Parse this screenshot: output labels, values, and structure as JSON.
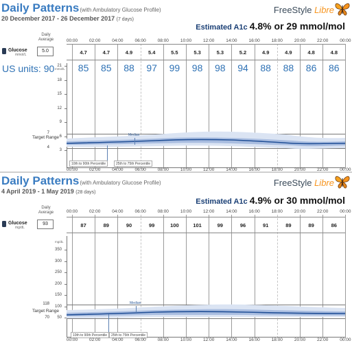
{
  "times": [
    "00:00",
    "02:00",
    "04:00",
    "06:00",
    "08:00",
    "10:00",
    "12:00",
    "14:00",
    "16:00",
    "18:00",
    "20:00",
    "22:00",
    "00:00"
  ],
  "report1": {
    "title": "Daily Patterns",
    "subtitle": "(with Ambulatory Glucose Profile)",
    "date_range": "20 December 2017 - 26 December 2017",
    "days": "(7 days)",
    "brand_freestyle": "FreeStyle",
    "brand_libre": "Libre",
    "a1c_label": "Estimated A1c",
    "a1c_value": "4.8% or 29 mmol/mol",
    "daily_average_header": "Daily Average",
    "glucose_label": "Glucose",
    "glucose_unit": "mmol/L",
    "daily_average_value": "5.0",
    "hourly_values": [
      "4.7",
      "4.7",
      "4.9",
      "5.4",
      "5.5",
      "5.3",
      "5.3",
      "5.2",
      "4.9",
      "4.9",
      "4.8",
      "4.8"
    ],
    "us_units_label": "US units: 90",
    "us_values": [
      "85",
      "85",
      "88",
      "97",
      "99",
      "98",
      "98",
      "94",
      "88",
      "88",
      "86",
      "86"
    ],
    "y_axis_unit": "mmol/L",
    "y_ticks": [
      "21",
      "18",
      "15",
      "12",
      "9",
      "6",
      "3"
    ],
    "target_range_label": "Target Range",
    "target_high": "7",
    "target_low": "4",
    "median_label": "Median",
    "legend_10_90": "10th to 90th Percentile",
    "legend_25_75": "25th to 75th Percentile"
  },
  "report2": {
    "title": "Daily Patterns",
    "subtitle": "(with Ambulatory Glucose Profile)",
    "date_range": "4 April 2019 - 1 May 2019",
    "days": "(28 days)",
    "brand_freestyle": "FreeStyle",
    "brand_libre": "Libre",
    "a1c_label": "Estimated A1c",
    "a1c_value": "4.9% or 30 mmol/mol",
    "daily_average_header": "Daily Average",
    "glucose_label": "Glucose",
    "glucose_unit": "mg/dL",
    "daily_average_value": "93",
    "hourly_values": [
      "87",
      "89",
      "90",
      "99",
      "100",
      "101",
      "99",
      "96",
      "91",
      "89",
      "89",
      "86"
    ],
    "y_axis_unit": "mg/dL",
    "y_ticks": [
      "350",
      "300",
      "250",
      "200",
      "150",
      "100",
      "50"
    ],
    "target_range_label": "Target Range",
    "target_high": "118",
    "target_low": "70",
    "median_label": "Median",
    "legend_10_90": "10th to 90th Percentile",
    "legend_25_75": "25th to 75th Percentile"
  },
  "colors": {
    "title_blue": "#3a7cc1",
    "median_line": "#1f4e96",
    "band_25_75": "#a9bde0",
    "band_10_90": "#dbe4f3",
    "libre_orange": "#f7941d"
  }
}
